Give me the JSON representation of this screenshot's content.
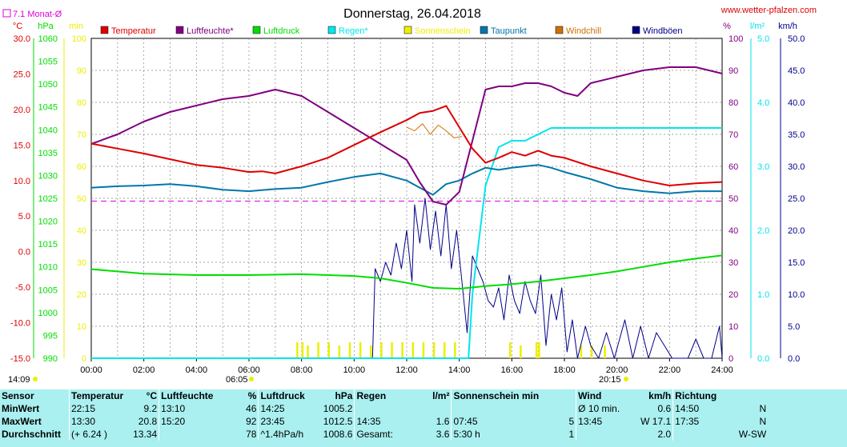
{
  "title": "Donnerstag, 26.04.2018",
  "website": "www.wetter-pfalzen.com",
  "monthly_avg_label": "7.1 Monat-Ø",
  "colors": {
    "temperature": "#dd0000",
    "humidity": "#800080",
    "pressure": "#00dd00",
    "rain": "#00e5ee",
    "sunshine": "#eeee00",
    "dewpoint": "#0077aa",
    "windchill": "#d07000",
    "gust": "#000088",
    "avg_line": "#dd00dd",
    "stats_bg": "#aaf0f0"
  },
  "chart_data": {
    "type": "line",
    "title": "Donnerstag, 26.04.2018",
    "legend": [
      "Temperatur",
      "Luftfeuchte*",
      "Luftdruck",
      "Regen*",
      "Sonnenschein",
      "Taupunkt",
      "Windchill",
      "Windböen"
    ],
    "legend_placement": "top",
    "grid": true,
    "xlim": [
      0,
      24
    ],
    "x_ticks": [
      "00:00",
      "02:00",
      "04:00",
      "06:00",
      "08:00",
      "10:00",
      "12:00",
      "14:00",
      "16:00",
      "18:00",
      "20:00",
      "22:00",
      "24:00"
    ],
    "sunrise": "06:05",
    "sunset": "20:15",
    "start_time": "14:09",
    "axes": {
      "temperature": {
        "unit": "°C",
        "ylim": [
          -15,
          30
        ],
        "ticks": [
          "30.0",
          "25.0",
          "20.0",
          "15.0",
          "10.0",
          "5.0",
          "0.0",
          "-5.0",
          "-10.0",
          "-15.0"
        ]
      },
      "pressure": {
        "unit": "hPa",
        "ylim": [
          990,
          1060
        ],
        "ticks": [
          "1060",
          "1055",
          "1050",
          "1045",
          "1040",
          "1035",
          "1030",
          "1025",
          "1020",
          "1015",
          "1010",
          "1005",
          "1000",
          "995",
          "990"
        ]
      },
      "sunshine": {
        "unit": "min",
        "ylim": [
          0,
          100
        ],
        "ticks": [
          "100",
          "90",
          "80",
          "70",
          "60",
          "50",
          "40",
          "30",
          "20",
          "10",
          "0"
        ]
      },
      "humidity": {
        "unit": "%",
        "ylim": [
          0,
          100
        ],
        "ticks": [
          "100",
          "90",
          "80",
          "70",
          "60",
          "50",
          "40",
          "30",
          "20",
          "10",
          "0"
        ]
      },
      "rain": {
        "unit": "l/m²",
        "ylim": [
          0,
          5
        ],
        "ticks": [
          "5.0",
          "4.0",
          "3.0",
          "2.0",
          "1.0",
          "0.0"
        ]
      },
      "wind": {
        "unit": "km/h",
        "ylim": [
          0,
          50
        ],
        "ticks": [
          "50.0",
          "45.0",
          "40.0",
          "35.0",
          "30.0",
          "25.0",
          "20.0",
          "15.0",
          "10.0",
          "5.0",
          "0.0"
        ]
      }
    },
    "monthly_avg_temperature": 7.1,
    "series": [
      {
        "name": "Temperatur",
        "axis": "temperature",
        "x": [
          0,
          1,
          2,
          3,
          4,
          5,
          6,
          6.5,
          7,
          7.5,
          8,
          9,
          10,
          11,
          12,
          12.5,
          13,
          13.5,
          14,
          14.5,
          15,
          15.5,
          16,
          16.5,
          17,
          17.5,
          18,
          19,
          20,
          21,
          22,
          23,
          24
        ],
        "y": [
          15.2,
          14.5,
          13.8,
          13.0,
          12.2,
          11.8,
          11.2,
          11.3,
          11.0,
          11.5,
          12.0,
          13.2,
          15.0,
          16.8,
          18.5,
          19.5,
          19.8,
          20.5,
          17.5,
          14.5,
          12.5,
          13.2,
          14.0,
          13.5,
          14.2,
          13.5,
          13.2,
          12.0,
          11.0,
          10.0,
          9.3,
          9.6,
          9.8
        ]
      },
      {
        "name": "Luftfeuchte*",
        "axis": "humidity",
        "x": [
          0,
          1,
          2,
          3,
          4,
          5,
          6,
          7,
          8,
          9,
          10,
          11,
          12,
          12.5,
          13,
          13.5,
          14,
          14.5,
          15,
          15.5,
          16,
          16.5,
          17,
          17.5,
          18,
          18.5,
          19,
          20,
          21,
          22,
          23,
          24
        ],
        "y": [
          67,
          70,
          74,
          77,
          79,
          81,
          82,
          84,
          82,
          77,
          72,
          67,
          62,
          55,
          49,
          48,
          52,
          68,
          84,
          85,
          85,
          86,
          86,
          85,
          83,
          82,
          86,
          88,
          90,
          91,
          91,
          89
        ]
      },
      {
        "name": "Luftdruck",
        "axis": "pressure",
        "x": [
          0,
          2,
          4,
          6,
          8,
          10,
          11,
          12,
          13,
          14,
          15,
          16,
          17,
          18,
          19,
          20,
          21,
          22,
          23,
          24
        ],
        "y": [
          1009.5,
          1008.5,
          1008.2,
          1008.2,
          1008.4,
          1008.0,
          1007.5,
          1006.5,
          1005.4,
          1005.2,
          1005.8,
          1006.2,
          1006.8,
          1007.5,
          1008.2,
          1009.0,
          1010.0,
          1011.0,
          1011.8,
          1012.5
        ]
      },
      {
        "name": "Regen*",
        "axis": "rain",
        "x": [
          0,
          14.35,
          14.5,
          15,
          15.5,
          16,
          16.5,
          17,
          17.5,
          18,
          24
        ],
        "y": [
          0,
          0,
          1.0,
          2.7,
          3.3,
          3.4,
          3.4,
          3.5,
          3.6,
          3.6,
          3.6
        ]
      },
      {
        "name": "Sonnenschein",
        "axis": "sunshine",
        "x": [
          7.8,
          8.0,
          8.2,
          8.6,
          9.0,
          9.4,
          9.8,
          10.2,
          10.6,
          11.0,
          11.4,
          11.8,
          12.2,
          12.6,
          13.0,
          13.4,
          13.8,
          15.9,
          16.3,
          16.9,
          17.0,
          18.6,
          19.0,
          19.5
        ],
        "y": [
          5,
          5,
          4,
          5,
          5,
          4,
          5,
          5,
          4,
          5,
          5,
          5,
          5,
          5,
          5,
          5,
          5,
          5,
          4,
          5,
          5,
          4,
          4,
          4
        ]
      },
      {
        "name": "Taupunkt",
        "axis": "temperature",
        "x": [
          0,
          1,
          2,
          3,
          4,
          5,
          6,
          7,
          8,
          9,
          10,
          11,
          12,
          12.5,
          13,
          13.5,
          14,
          14.5,
          15,
          15.5,
          16,
          16.5,
          17,
          17.5,
          18,
          19,
          20,
          21,
          22,
          23,
          24
        ],
        "y": [
          9.0,
          9.2,
          9.3,
          9.5,
          9.2,
          8.7,
          8.5,
          8.8,
          9.0,
          9.8,
          10.5,
          11.0,
          10.0,
          9.0,
          8.0,
          9.5,
          10.0,
          11.0,
          11.8,
          11.5,
          11.8,
          12.0,
          12.2,
          11.8,
          11.2,
          10.2,
          9.0,
          8.5,
          8.2,
          8.5,
          8.5
        ]
      },
      {
        "name": "Windchill",
        "axis": "temperature",
        "x": [
          12.0,
          12.3,
          12.6,
          12.9,
          13.2,
          13.5,
          13.8,
          14.1
        ],
        "y": [
          17.5,
          17.0,
          18.0,
          16.5,
          17.8,
          17.0,
          16.0,
          16.2
        ]
      },
      {
        "name": "Windböen",
        "axis": "wind",
        "x": [
          0,
          10.7,
          10.8,
          11.0,
          11.2,
          11.4,
          11.6,
          11.8,
          12.0,
          12.2,
          12.3,
          12.5,
          12.7,
          12.9,
          13.1,
          13.3,
          13.5,
          13.7,
          13.9,
          14.1,
          14.3,
          14.5,
          14.7,
          14.9,
          15.1,
          15.3,
          15.5,
          15.7,
          15.9,
          16.1,
          16.3,
          16.5,
          16.7,
          16.9,
          17.1,
          17.3,
          17.5,
          17.7,
          17.9,
          18.1,
          18.3,
          18.5,
          18.8,
          19.0,
          19.3,
          19.6,
          19.9,
          20.3,
          20.6,
          20.9,
          21.2,
          21.5,
          21.8,
          22.1,
          22.4,
          22.7,
          23.0,
          23.3,
          23.6,
          23.9,
          24
        ],
        "y": [
          0,
          0,
          14,
          12,
          15,
          13,
          18,
          14,
          20,
          12,
          24,
          18,
          25,
          17,
          23,
          16,
          24,
          14,
          20,
          12,
          4,
          16,
          14,
          12,
          9,
          8,
          11,
          6,
          13,
          9,
          7,
          12,
          9,
          7,
          13,
          2,
          10,
          6,
          11,
          1,
          6,
          0,
          5,
          2,
          0,
          4,
          0,
          6,
          0,
          5,
          0,
          4,
          2,
          0,
          0,
          0,
          3,
          0,
          0,
          5,
          0
        ]
      }
    ]
  },
  "stats": {
    "headers": {
      "sensor": "Sensor",
      "temp": "Temperatur",
      "temp_unit": "°C",
      "hum": "Luftfeuchte",
      "hum_unit": "%",
      "press": "Luftdruck",
      "press_unit": "hPa",
      "rain": "Regen",
      "rain_unit": "l/m²",
      "sun": "Sonnenschein min",
      "wind": "Wind",
      "wind_unit": "km/h",
      "dir": "Richtung"
    },
    "rows": [
      {
        "label": "MinWert",
        "temp_time": "22:15",
        "temp_val": "9.2",
        "hum_time": "13:10",
        "hum_val": "46",
        "press_time": "14:25",
        "press_val": "1005.2",
        "rain_time": "",
        "rain_val": "",
        "sun_time": "",
        "sun_val": "",
        "wind_time": "Ø 10 min.",
        "wind_val": "0.6",
        "dir_time": "14:50",
        "dir_val": "N"
      },
      {
        "label": "MaxWert",
        "temp_time": "13:30",
        "temp_val": "20.8",
        "hum_time": "15:20",
        "hum_val": "92",
        "press_time": "23:45",
        "press_val": "1012.5",
        "rain_time": "14:35",
        "rain_val": "1.6",
        "sun_time": "07:45",
        "sun_val": "5",
        "wind_time": "13:45",
        "wind_val": "W 17.1",
        "dir_time": "17:35",
        "dir_val": "N"
      },
      {
        "label": "Durchschnitt",
        "temp_time": "(+ 6.24 )",
        "temp_val": "13.34",
        "hum_time": "",
        "hum_val": "78",
        "press_time": "^1.4hPa/h",
        "press_val": "1008.6",
        "rain_time": "Gesamt:",
        "rain_val": "3.6",
        "sun_time": "5:30 h",
        "sun_val": "1",
        "wind_time": "",
        "wind_val": "2.0",
        "dir_time": "",
        "dir_val": "W-SW"
      }
    ]
  }
}
